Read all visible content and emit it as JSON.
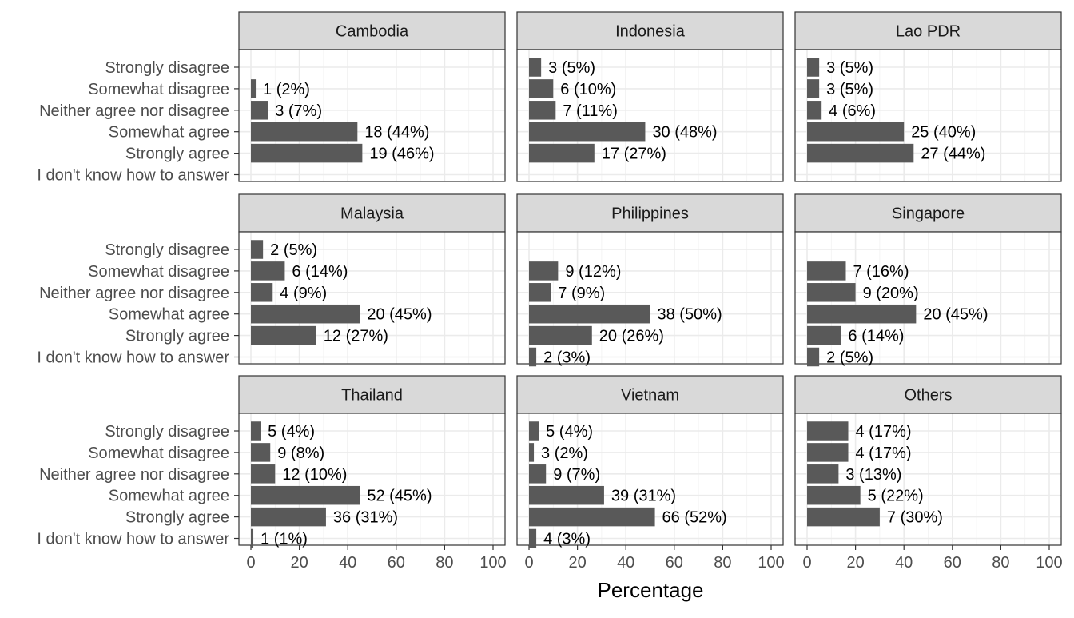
{
  "chart_data": {
    "type": "bar",
    "orientation": "horizontal",
    "layout": "facet-grid 3x3",
    "xlabel": "Percentage",
    "xlim": [
      0,
      100
    ],
    "x_ticks": [
      0,
      20,
      40,
      60,
      80,
      100
    ],
    "grid": true,
    "categories": [
      "Strongly disagree",
      "Somewhat disagree",
      "Neither agree nor disagree",
      "Somewhat agree",
      "Strongly agree",
      "I don't know how to answer"
    ],
    "bar_color": "#595959",
    "panels": [
      {
        "title": "Cambodia",
        "values": [
          null,
          2,
          7,
          44,
          46,
          null
        ],
        "labels": [
          "",
          "1 (2%)",
          "3 (7%)",
          "18 (44%)",
          "19 (46%)",
          ""
        ]
      },
      {
        "title": "Indonesia",
        "values": [
          5,
          10,
          11,
          48,
          27,
          null
        ],
        "labels": [
          "3 (5%)",
          "6 (10%)",
          "7 (11%)",
          "30 (48%)",
          "17 (27%)",
          ""
        ]
      },
      {
        "title": "Lao PDR",
        "values": [
          5,
          5,
          6,
          40,
          44,
          null
        ],
        "labels": [
          "3 (5%)",
          "3 (5%)",
          "4 (6%)",
          "25 (40%)",
          "27 (44%)",
          ""
        ]
      },
      {
        "title": "Malaysia",
        "values": [
          5,
          14,
          9,
          45,
          27,
          null
        ],
        "labels": [
          "2 (5%)",
          "6 (14%)",
          "4 (9%)",
          "20 (45%)",
          "12 (27%)",
          ""
        ]
      },
      {
        "title": "Philippines",
        "values": [
          null,
          12,
          9,
          50,
          26,
          3
        ],
        "labels": [
          "",
          "9 (12%)",
          "7 (9%)",
          "38 (50%)",
          "20 (26%)",
          "2 (3%)"
        ]
      },
      {
        "title": "Singapore",
        "values": [
          null,
          16,
          20,
          45,
          14,
          5
        ],
        "labels": [
          "",
          "7 (16%)",
          "9 (20%)",
          "20 (45%)",
          "6 (14%)",
          "2 (5%)"
        ]
      },
      {
        "title": "Thailand",
        "values": [
          4,
          8,
          10,
          45,
          31,
          1
        ],
        "labels": [
          "5 (4%)",
          "9 (8%)",
          "12 (10%)",
          "52 (45%)",
          "36 (31%)",
          "1 (1%)"
        ]
      },
      {
        "title": "Vietnam",
        "values": [
          4,
          2,
          7,
          31,
          52,
          3
        ],
        "labels": [
          "5 (4%)",
          "3 (2%)",
          "9 (7%)",
          "39 (31%)",
          "66 (52%)",
          "4 (3%)"
        ]
      },
      {
        "title": "Others",
        "values": [
          17,
          17,
          13,
          22,
          30,
          null
        ],
        "labels": [
          "4 (17%)",
          "4 (17%)",
          "3 (13%)",
          "5 (22%)",
          "7 (30%)",
          ""
        ]
      }
    ]
  }
}
